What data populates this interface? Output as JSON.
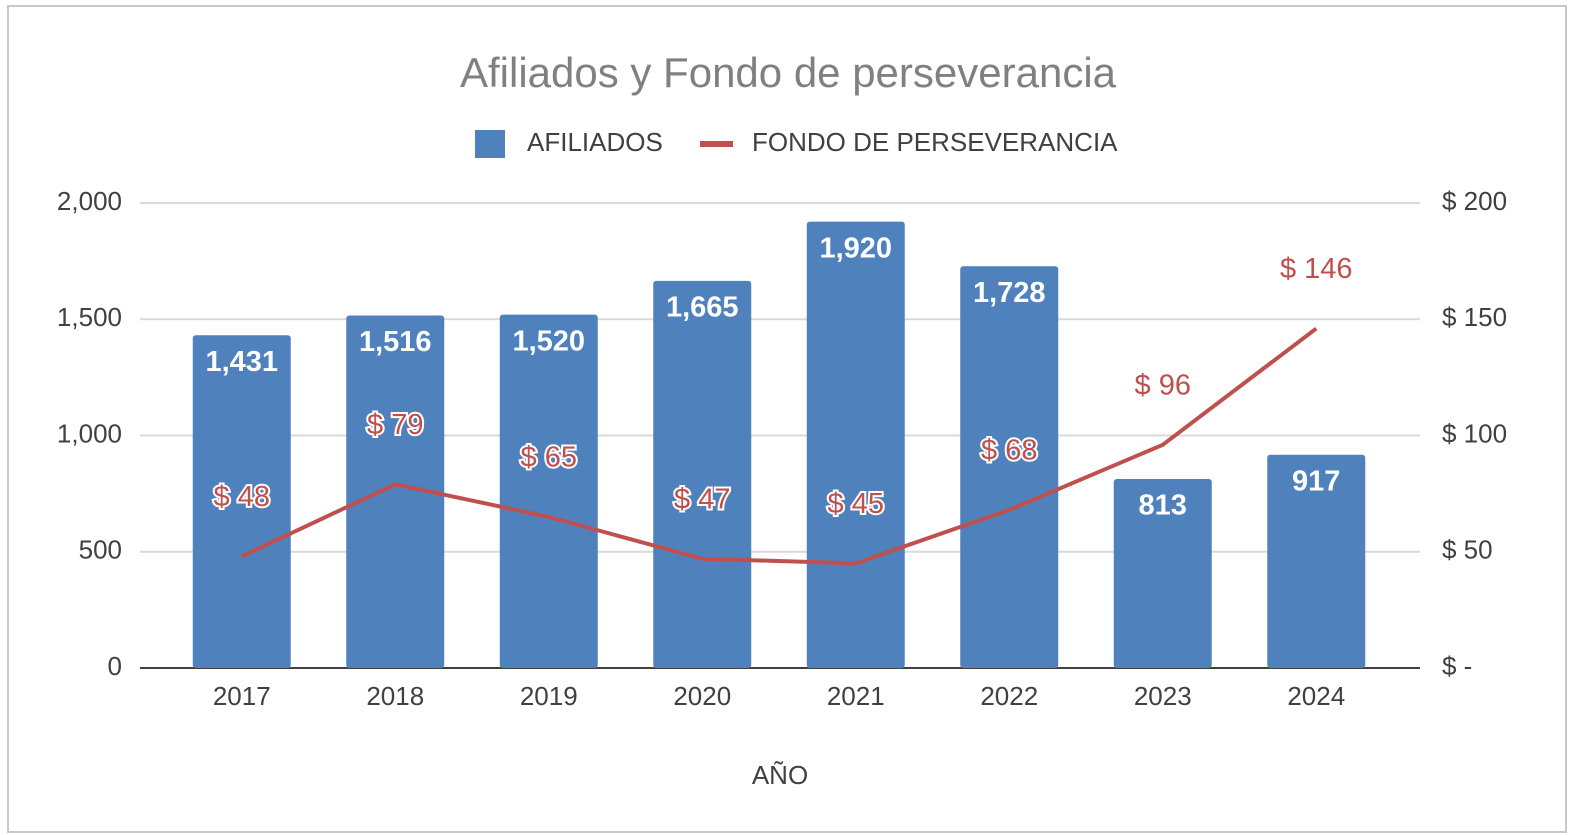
{
  "chart_data": {
    "type": "bar",
    "title": "Afiliados y Fondo de perseverancia",
    "x_label": "AÑO",
    "categories": [
      "2017",
      "2018",
      "2019",
      "2020",
      "2021",
      "2022",
      "2023",
      "2024"
    ],
    "series": [
      {
        "name": "AFILIADOS",
        "type": "bar",
        "color": "#4f81bd",
        "values": [
          1431,
          1516,
          1520,
          1665,
          1920,
          1728,
          813,
          917
        ],
        "value_labels": [
          "1,431",
          "1,516",
          "1,520",
          "1,665",
          "1,920",
          "1,728",
          "813",
          "917"
        ]
      },
      {
        "name": "FONDO DE PERSEVERANCIA",
        "type": "line",
        "axis": "y2",
        "color": "#c0504d",
        "values": [
          48,
          79,
          65,
          47,
          45,
          68,
          96,
          146
        ],
        "value_labels": [
          "$ 48",
          "$ 79",
          "$ 65",
          "$ 47",
          "$ 45",
          "$ 68",
          "$ 96",
          "$ 146"
        ]
      }
    ],
    "ylim": [
      0,
      2000
    ],
    "yticks": [
      0,
      500,
      {
        "value": 1000,
        "label": "1,000"
      },
      {
        "value": 1500,
        "label": "1,500"
      },
      {
        "value": 2000,
        "label": "2,000"
      }
    ],
    "y2lim": [
      0,
      200
    ],
    "y2ticks": [
      {
        "value": 0,
        "label": "$ -"
      },
      {
        "value": 50,
        "label": "$ 50"
      },
      {
        "value": 100,
        "label": "$ 100"
      },
      {
        "value": 150,
        "label": "$ 150"
      },
      {
        "value": 200,
        "label": "$ 200"
      }
    ],
    "grid": true,
    "legend": "top"
  }
}
